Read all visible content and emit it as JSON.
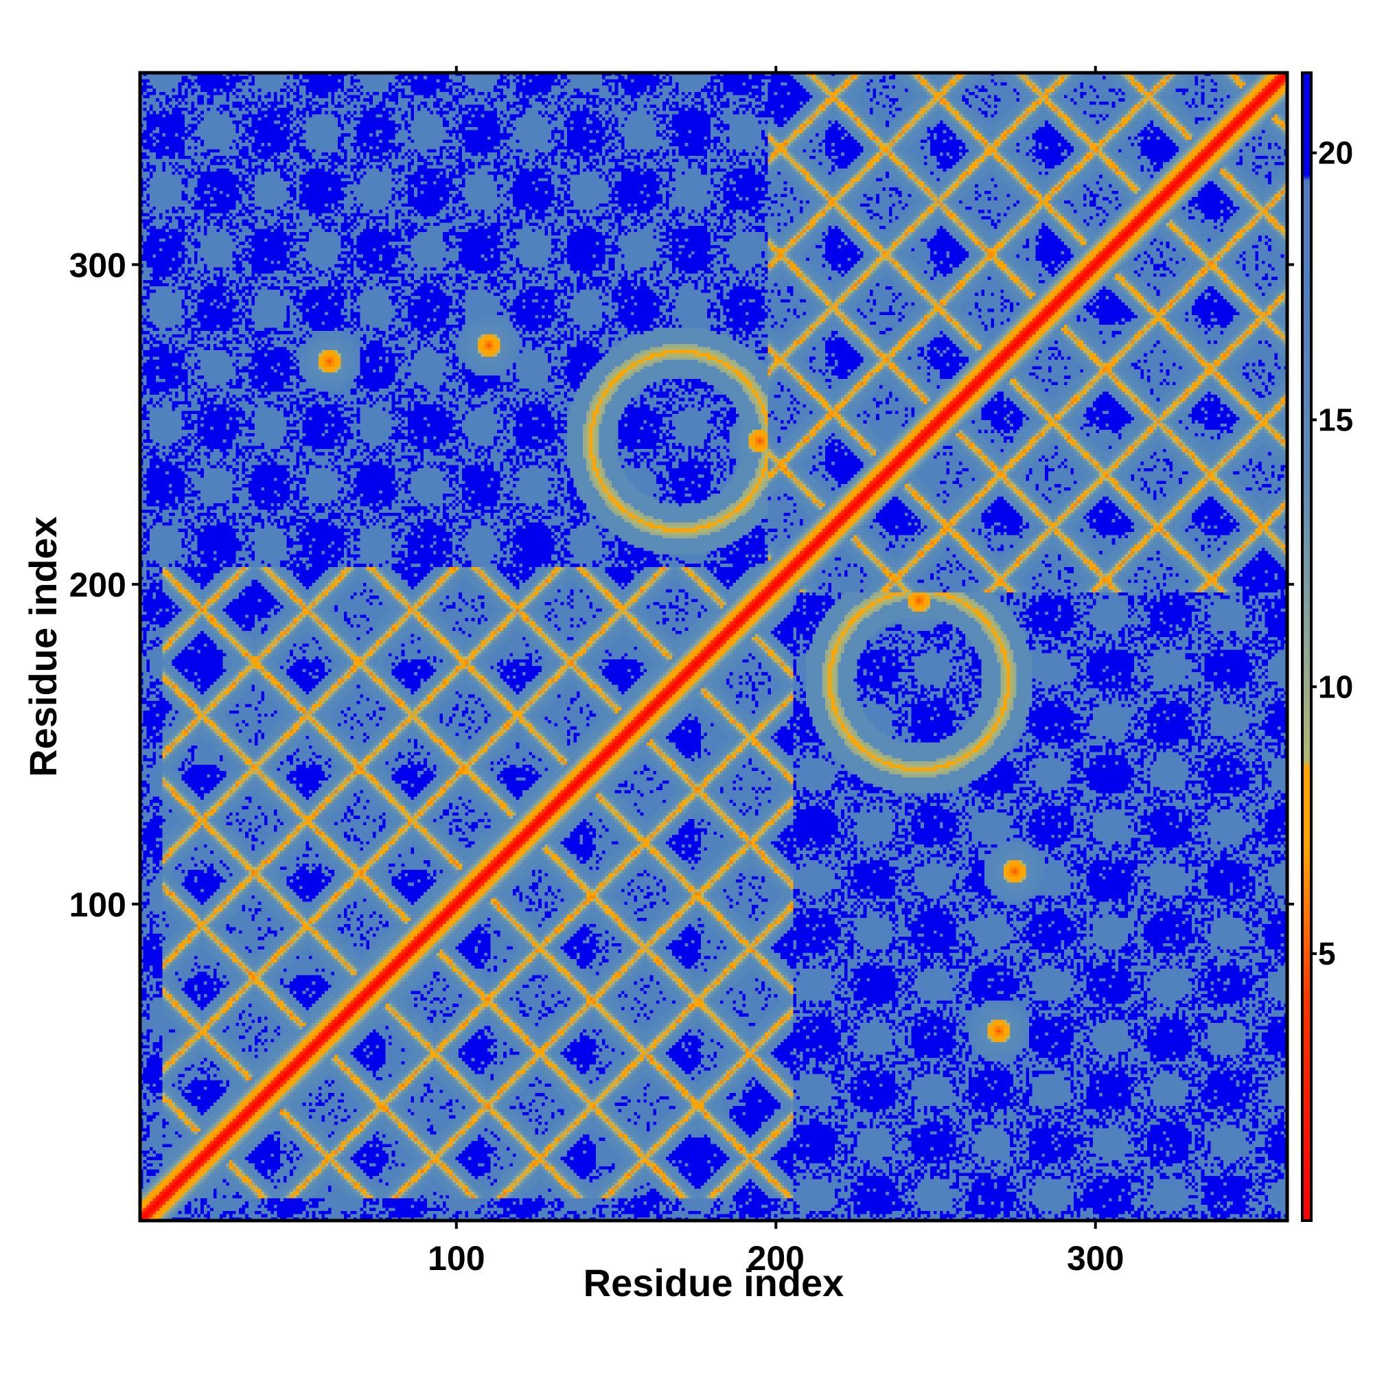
{
  "chart_data": {
    "type": "heatmap",
    "title": "",
    "xlabel": "Residue index",
    "ylabel": "Residue index",
    "xlim": [
      1,
      360
    ],
    "ylim": [
      1,
      360
    ],
    "x_ticks": [
      100,
      200,
      300
    ],
    "y_ticks": [
      100,
      200,
      300
    ],
    "x_tick_labels": [
      "100",
      "200",
      "300"
    ],
    "y_tick_labels": [
      "100",
      "200",
      "300"
    ],
    "colorbar": {
      "ticks": [
        5,
        10,
        15,
        20
      ],
      "tick_labels": [
        "5",
        "10",
        "15",
        "20"
      ],
      "range": [
        0,
        21.5
      ],
      "stops": [
        {
          "value": 0,
          "color": "#ff0000"
        },
        {
          "value": 4,
          "color": "#ff3300"
        },
        {
          "value": 7,
          "color": "#ffa500"
        },
        {
          "value": 8.5,
          "color": "#ffa500"
        },
        {
          "value": 8.6,
          "color": "#b3b870"
        },
        {
          "value": 11,
          "color": "#8aa59a"
        },
        {
          "value": 14,
          "color": "#5b8cb8"
        },
        {
          "value": 18,
          "color": "#4f7fc0"
        },
        {
          "value": 19.5,
          "color": "#4f7fc0"
        },
        {
          "value": 19.6,
          "color": "#0000ee"
        },
        {
          "value": 21.5,
          "color": "#0000ee"
        }
      ]
    },
    "palette": {
      "far": "#0000f0",
      "mid": "#5b87bb",
      "near": "#ff0000",
      "contact": "#ffa000",
      "border": "#c2c87a"
    },
    "grid": false,
    "legend": "right colorbar",
    "symmetric": true,
    "description_values": "pairwise residue distance map (Angstrom), symmetric matrix with diagonal of ~0"
  }
}
